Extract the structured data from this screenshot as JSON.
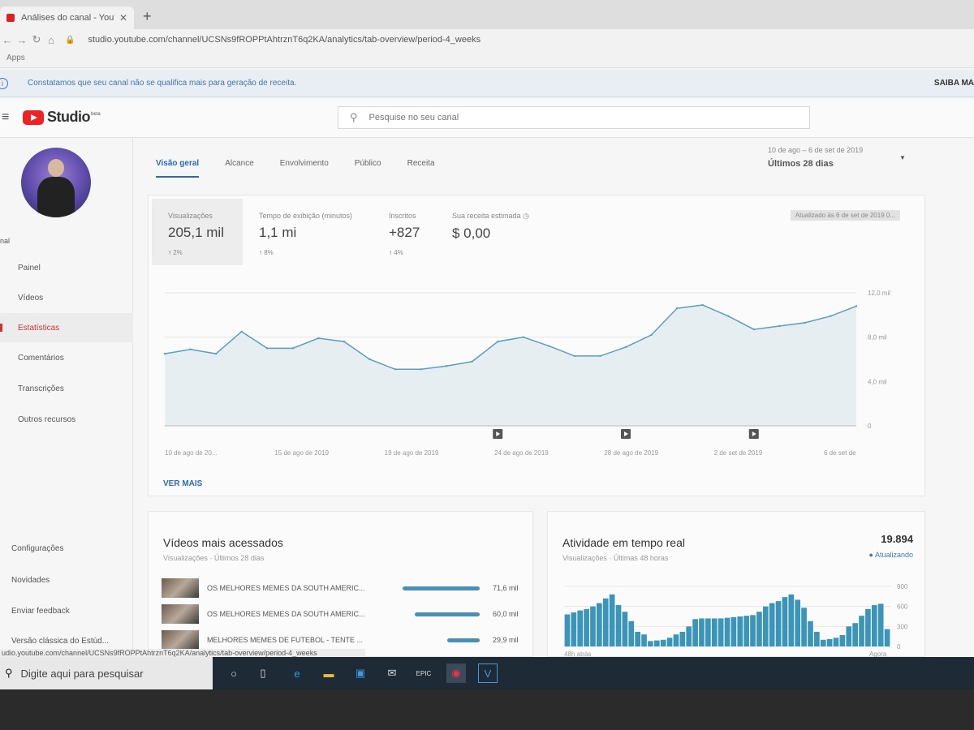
{
  "browser": {
    "tab_title": "Análises do canal - YouTube Stu",
    "tab_close": "✕",
    "new_tab": "+",
    "url": "studio.youtube.com/channel/UCSNs9fROPPtAhtrznT6q2KA/analytics/tab-overview/period-4_weeks",
    "bookmarks_label": "Apps",
    "status_url": "udio.youtube.com/channel/UCSNs9fROPPtAhtrznT6q2KA/analytics/tab-overview/period-4_weeks"
  },
  "banner": {
    "message": "Constatamos que seu canal não se qualifica mais para geração de receita.",
    "action": "SAIBA MA"
  },
  "header": {
    "logo_text": "Studio",
    "logo_badge": "beta",
    "search_placeholder": "Pesquise no seu canal"
  },
  "sidebar": {
    "channel_label": "nal",
    "items": [
      {
        "label": "Painel",
        "icon": "dashboard-icon"
      },
      {
        "label": "Vídeos",
        "icon": "video-icon"
      },
      {
        "label": "Estatísticas",
        "icon": "analytics-icon"
      },
      {
        "label": "Comentários",
        "icon": "comments-icon"
      },
      {
        "label": "Transcrições",
        "icon": "transcriptions-icon"
      },
      {
        "label": "Outros recursos",
        "icon": "other-features-icon"
      }
    ],
    "bottom_items": [
      {
        "label": "Configurações"
      },
      {
        "label": "Novidades"
      },
      {
        "label": "Enviar feedback"
      },
      {
        "label": "Versão clássica do Estúd..."
      }
    ]
  },
  "analytics": {
    "tabs": [
      "Visão geral",
      "Alcance",
      "Envolvimento",
      "Público",
      "Receita"
    ],
    "date_range": "10 de ago – 6 de set de 2019",
    "period": "Últimos 28 dias",
    "updated": "Atualizado às 6 de set de 2019 0...",
    "metrics": [
      {
        "label": "Visualizações",
        "value": "205,1 mil",
        "change": "2%",
        "arrow": "↑"
      },
      {
        "label": "Tempo de exibição (minutos)",
        "value": "1,1 mi",
        "change": "8%",
        "arrow": "↑"
      },
      {
        "label": "Inscritos",
        "value": "+827",
        "change": "4%",
        "arrow": "↑"
      },
      {
        "label": "Sua receita estimada",
        "value": "$ 0,00",
        "change": "",
        "arrow": ""
      }
    ],
    "see_more": "VER MAIS"
  },
  "chart_data": [
    {
      "type": "area",
      "title": "",
      "xlabel": "",
      "ylabel": "",
      "ylim": [
        0,
        12000
      ],
      "y_ticks": [
        "12,0 mil",
        "8,0 mil",
        "4,0 mil",
        "0"
      ],
      "x_tick_labels": [
        "10 de ago de 20...",
        "15 de ago de 2019",
        "19 de ago de 2019",
        "24 de ago de 2019",
        "28 de ago de 2019",
        "2 de set de 2019",
        "6 de set de"
      ],
      "x": [
        "10 ago",
        "11 ago",
        "12 ago",
        "13 ago",
        "14 ago",
        "15 ago",
        "16 ago",
        "17 ago",
        "18 ago",
        "19 ago",
        "20 ago",
        "21 ago",
        "22 ago",
        "23 ago",
        "24 ago",
        "25 ago",
        "26 ago",
        "27 ago",
        "28 ago",
        "29 ago",
        "30 ago",
        "31 ago",
        "1 set",
        "2 set",
        "3 set",
        "4 set",
        "5 set",
        "6 set"
      ],
      "values": [
        6500,
        6900,
        6500,
        8500,
        7000,
        7000,
        7900,
        7600,
        6000,
        5100,
        5100,
        5400,
        5800,
        7600,
        8000,
        7200,
        6300,
        6300,
        7100,
        8200,
        10600,
        10900,
        9900,
        8700,
        9000,
        9300,
        9900,
        10800
      ],
      "color": "#5a9fc0",
      "markers_at_index": [
        13,
        18,
        23
      ]
    },
    {
      "type": "bar",
      "title": "Atividade em tempo real",
      "subtitle": "Visualizações · Últimas 48 horas",
      "y_ticks": [
        "900",
        "600",
        "300",
        "0"
      ],
      "ylim": [
        0,
        900
      ],
      "x_tick_labels": [
        "48h atrás",
        "Agora"
      ],
      "values": [
        480,
        510,
        540,
        560,
        600,
        650,
        720,
        780,
        620,
        520,
        380,
        220,
        180,
        80,
        90,
        100,
        130,
        180,
        220,
        300,
        410,
        420,
        420,
        420,
        420,
        430,
        440,
        450,
        460,
        470,
        520,
        600,
        650,
        680,
        740,
        780,
        700,
        580,
        380,
        220,
        100,
        110,
        130,
        170,
        300,
        350,
        460,
        560,
        620,
        640,
        260
      ],
      "color": "#3a95b8"
    }
  ],
  "top_videos": {
    "title": "Vídeos mais acessados",
    "subtitle": "Visualizações · Últimos 28 dias",
    "rows": [
      {
        "title": "OS MELHORES MEMES DA SOUTH AMERIC...",
        "views": "71,6 mil",
        "fraction": 1.0
      },
      {
        "title": "OS MELHORES MEMES DA SOUTH AMERIC...",
        "views": "60,0 mil",
        "fraction": 0.84
      },
      {
        "title": "MELHORES MEMES DE FUTEBOL - TENTE ...",
        "views": "29,9 mil",
        "fraction": 0.42
      }
    ]
  },
  "realtime": {
    "count": "19.894",
    "status": "Atualizando"
  },
  "taskbar": {
    "search_placeholder": "Digite aqui para pesquisar",
    "icons": [
      "task-view-icon",
      "edge-icon",
      "file-explorer-icon",
      "store-icon",
      "mail-icon",
      "epic-games-icon",
      "chrome-icon",
      "vegas-icon"
    ]
  }
}
